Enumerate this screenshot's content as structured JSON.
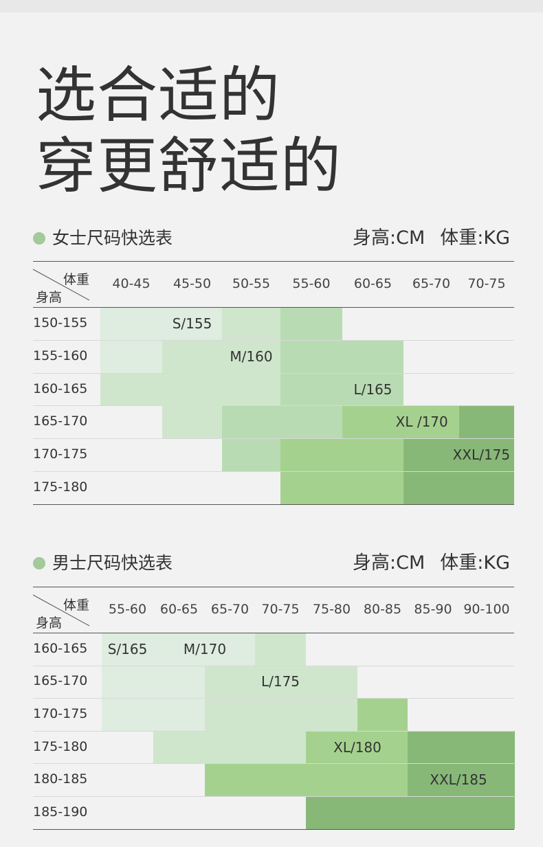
{
  "headline": {
    "line1": "选合适的",
    "line2": "穿更舒适的"
  },
  "colors": {
    "c1": "#dfece0",
    "c2": "#cfe6cd",
    "c3": "#b9dbb3",
    "c4": "#a5d18f",
    "c5": "#87b878",
    "dot": "#a4c99a"
  },
  "women": {
    "title": "女士尺码快选表",
    "unit_height": "身高:CM",
    "unit_weight": "体重:KG",
    "corner_weight": "体重",
    "corner_height": "身高",
    "columns": [
      "40-45",
      "45-50",
      "50-55",
      "55-60",
      "60-65",
      "65-70",
      "70-75"
    ],
    "rows": [
      "150-155",
      "155-160",
      "160-165",
      "165-170",
      "170-175",
      "175-180"
    ],
    "grid": [
      [
        "c1",
        "c1",
        "c2",
        "c3",
        "",
        "",
        ""
      ],
      [
        "c1",
        "c2",
        "c2",
        "c3",
        "c3",
        "",
        ""
      ],
      [
        "c2",
        "c2",
        "c2",
        "c3",
        "c3",
        "",
        ""
      ],
      [
        "",
        "c2",
        "c3",
        "c3",
        "c4",
        "c4",
        "c5"
      ],
      [
        "",
        "",
        "c3",
        "c4",
        "c4",
        "c5",
        "c5"
      ],
      [
        "",
        "",
        "",
        "c4",
        "c4",
        "c5",
        "c5"
      ]
    ],
    "labels": [
      {
        "text": "S/155",
        "row": 0,
        "col": 1
      },
      {
        "text": "M/160",
        "row": 1,
        "col": 2
      },
      {
        "text": "L/165",
        "row": 2,
        "col": 4
      },
      {
        "text": "XL /170",
        "row": 3,
        "col": 4.8
      },
      {
        "text": "XXL/175",
        "row": 4,
        "col": 5.9
      }
    ]
  },
  "men": {
    "title": "男士尺码快选表",
    "unit_height": "身高:CM",
    "unit_weight": "体重:KG",
    "corner_weight": "体重",
    "corner_height": "身高",
    "columns": [
      "55-60",
      "60-65",
      "65-70",
      "70-75",
      "75-80",
      "80-85",
      "85-90",
      "90-100"
    ],
    "rows": [
      "160-165",
      "165-170",
      "170-175",
      "175-180",
      "180-185",
      "185-190"
    ],
    "grid": [
      [
        "c1",
        "c1",
        "c1",
        "c2",
        "",
        "",
        "",
        ""
      ],
      [
        "c1",
        "c1",
        "c2",
        "c2",
        "c2",
        "",
        "",
        ""
      ],
      [
        "c1",
        "c1",
        "c2",
        "c2",
        "c2",
        "c4",
        "",
        ""
      ],
      [
        "",
        "c2",
        "c2",
        "c2",
        "c4",
        "c4",
        "c5",
        "c5"
      ],
      [
        "",
        "",
        "c4",
        "c4",
        "c4",
        "c4",
        "c5",
        "c5"
      ],
      [
        "",
        "",
        "",
        "",
        "c5",
        "c5",
        "c5",
        "c5"
      ]
    ],
    "labels": [
      {
        "text": "S/165",
        "row": 0,
        "col": 0
      },
      {
        "text": "M/170",
        "row": 0,
        "col": 1.5
      },
      {
        "text": "L/175",
        "row": 1,
        "col": 3
      },
      {
        "text": "XL/180",
        "row": 3,
        "col": 4.5
      },
      {
        "text": "XXL/185",
        "row": 4,
        "col": 6.5
      }
    ]
  }
}
